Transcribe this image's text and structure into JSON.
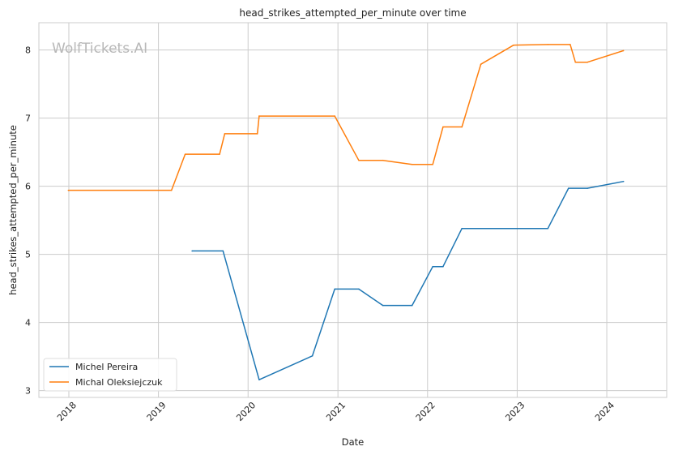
{
  "watermark": "WolfTickets.AI",
  "chart_data": {
    "type": "line",
    "title": "head_strikes_attempted_per_minute over time",
    "xlabel": "Date",
    "ylabel": "head_strikes_attempted_per_minute",
    "x_ticks": [
      "2018",
      "2019",
      "2020",
      "2021",
      "2022",
      "2023",
      "2024"
    ],
    "y_ticks": [
      "3",
      "4",
      "5",
      "6",
      "7",
      "8"
    ],
    "xlim": [
      "2017-09-01",
      "2024-09-01"
    ],
    "ylim": [
      2.9,
      8.4
    ],
    "grid": true,
    "legend_position": "lower-left",
    "series": [
      {
        "name": "Michel Pereira",
        "color": "#1f77b4",
        "points": [
          [
            "2019-05-18",
            5.05
          ],
          [
            "2019-09-21",
            5.05
          ],
          [
            "2020-02-15",
            3.16
          ],
          [
            "2020-09-19",
            3.51
          ],
          [
            "2020-12-19",
            4.49
          ],
          [
            "2021-03-27",
            4.49
          ],
          [
            "2021-07-03",
            4.25
          ],
          [
            "2021-10-30",
            4.25
          ],
          [
            "2022-01-22",
            4.82
          ],
          [
            "2022-03-05",
            4.82
          ],
          [
            "2022-05-21",
            5.38
          ],
          [
            "2023-05-06",
            5.38
          ],
          [
            "2023-07-29",
            5.97
          ],
          [
            "2023-10-14",
            5.97
          ],
          [
            "2024-03-09",
            6.07
          ]
        ]
      },
      {
        "name": "Michal Oleksiejczuk",
        "color": "#ff7f0e",
        "points": [
          [
            "2017-12-30",
            5.94
          ],
          [
            "2019-02-23",
            5.94
          ],
          [
            "2019-04-20",
            6.47
          ],
          [
            "2019-09-07",
            6.47
          ],
          [
            "2019-09-28",
            6.77
          ],
          [
            "2020-02-08",
            6.77
          ],
          [
            "2020-02-15",
            7.03
          ],
          [
            "2020-12-19",
            7.03
          ],
          [
            "2021-03-27",
            6.38
          ],
          [
            "2021-07-03",
            6.38
          ],
          [
            "2021-10-30",
            6.32
          ],
          [
            "2022-01-22",
            6.32
          ],
          [
            "2022-03-05",
            6.87
          ],
          [
            "2022-05-21",
            6.87
          ],
          [
            "2022-08-06",
            7.79
          ],
          [
            "2022-12-17",
            8.07
          ],
          [
            "2023-05-06",
            8.08
          ],
          [
            "2023-08-05",
            8.08
          ],
          [
            "2023-08-26",
            7.82
          ],
          [
            "2023-10-14",
            7.82
          ],
          [
            "2024-03-09",
            7.99
          ]
        ]
      }
    ]
  }
}
